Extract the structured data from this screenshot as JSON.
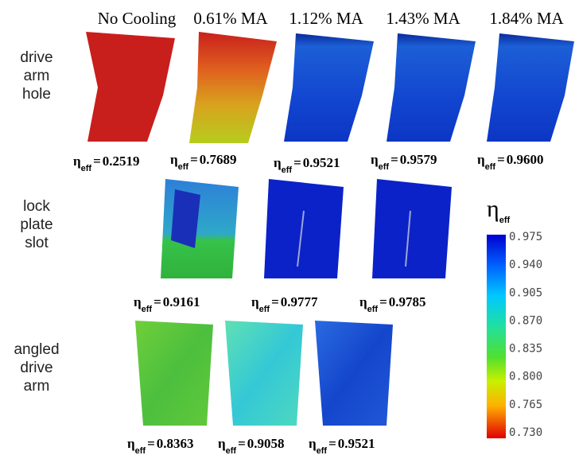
{
  "column_headers": [
    "No Cooling",
    "0.61% MA",
    "1.12% MA",
    "1.43% MA",
    "1.84% MA"
  ],
  "row_labels": [
    [
      "drive",
      "arm",
      "hole"
    ],
    [
      "lock",
      "plate",
      "slot"
    ],
    [
      "angled",
      "drive",
      "arm"
    ]
  ],
  "efficiency_symbol": "η",
  "efficiency_subscript": "eff",
  "equals": "=",
  "rows": [
    {
      "values": [
        "0.2519",
        "0.7689",
        "0.9521",
        "0.9579",
        "0.9600"
      ]
    },
    {
      "values": [
        "0.9161",
        "0.9777",
        "0.9785"
      ]
    },
    {
      "values": [
        "0.8363",
        "0.9058",
        "0.9521"
      ]
    }
  ],
  "colorbar": {
    "ticks": [
      "0.975",
      "0.940",
      "0.905",
      "0.870",
      "0.835",
      "0.800",
      "0.765",
      "0.730"
    ]
  }
}
